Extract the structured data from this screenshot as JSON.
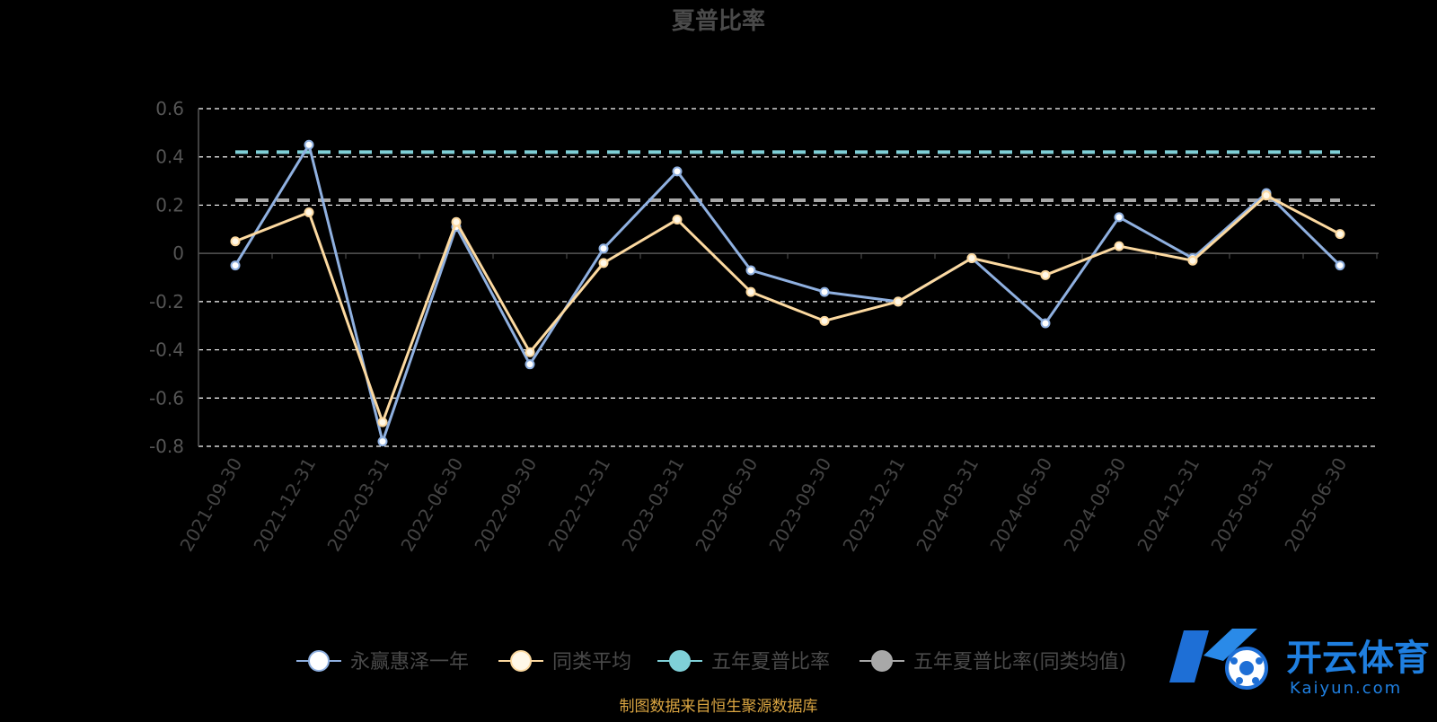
{
  "chart_data": {
    "type": "line",
    "title": "夏普比率",
    "categories": [
      "2021-09-30",
      "2021-12-31",
      "2022-03-31",
      "2022-06-30",
      "2022-09-30",
      "2022-12-31",
      "2023-03-31",
      "2023-06-30",
      "2023-09-30",
      "2023-12-31",
      "2024-03-31",
      "2024-06-30",
      "2024-09-30",
      "2024-12-31",
      "2025-03-31",
      "2025-06-30"
    ],
    "ylim": [
      -0.8,
      0.6
    ],
    "yticks": [
      0.6,
      0.4,
      0.2,
      0,
      -0.2,
      -0.4,
      -0.6,
      -0.8
    ],
    "ytick_labels": [
      "0.6",
      "0.4",
      "0.2",
      "0",
      "-0.2",
      "-0.4",
      "-0.6",
      "-0.8"
    ],
    "grid": true,
    "legend_position": "bottom",
    "series": [
      {
        "name": "永赢惠泽一年",
        "color": "#8fb0e0",
        "marker_fill": "#ffffff",
        "values": [
          -0.05,
          0.45,
          -0.78,
          0.11,
          -0.46,
          0.02,
          0.34,
          -0.07,
          -0.16,
          -0.2,
          -0.02,
          -0.29,
          0.15,
          -0.02,
          0.25,
          -0.05
        ]
      },
      {
        "name": "同类平均",
        "color": "#fcd9a0",
        "marker_fill": "#fff8e8",
        "values": [
          0.05,
          0.17,
          -0.7,
          0.13,
          -0.41,
          -0.04,
          0.14,
          -0.16,
          -0.28,
          -0.2,
          -0.02,
          -0.09,
          0.03,
          -0.03,
          0.24,
          0.08
        ]
      },
      {
        "name": "五年夏普比率",
        "color": "#7fd0d8",
        "marker_fill": "#7fd0d8",
        "values": [
          0.42,
          0.42,
          0.42,
          0.42,
          0.42,
          0.42,
          0.42,
          0.42,
          0.42,
          0.42,
          0.42,
          0.42,
          0.42,
          0.42,
          0.42,
          0.42
        ]
      },
      {
        "name": "五年夏普比率(同类均值)",
        "color": "#a8a8a8",
        "marker_fill": "#a8a8a8",
        "values": [
          0.22,
          0.22,
          0.22,
          0.22,
          0.22,
          0.22,
          0.22,
          0.22,
          0.22,
          0.22,
          0.22,
          0.22,
          0.22,
          0.22,
          0.22,
          0.22
        ]
      }
    ]
  },
  "source_note": "制图数据来自恒生聚源数据库",
  "watermark": {
    "name": "开云体育",
    "domain": "Kaiyun.com"
  },
  "colors": {
    "background": "#000000",
    "grid": "#ffffff",
    "axis": "#555555"
  }
}
